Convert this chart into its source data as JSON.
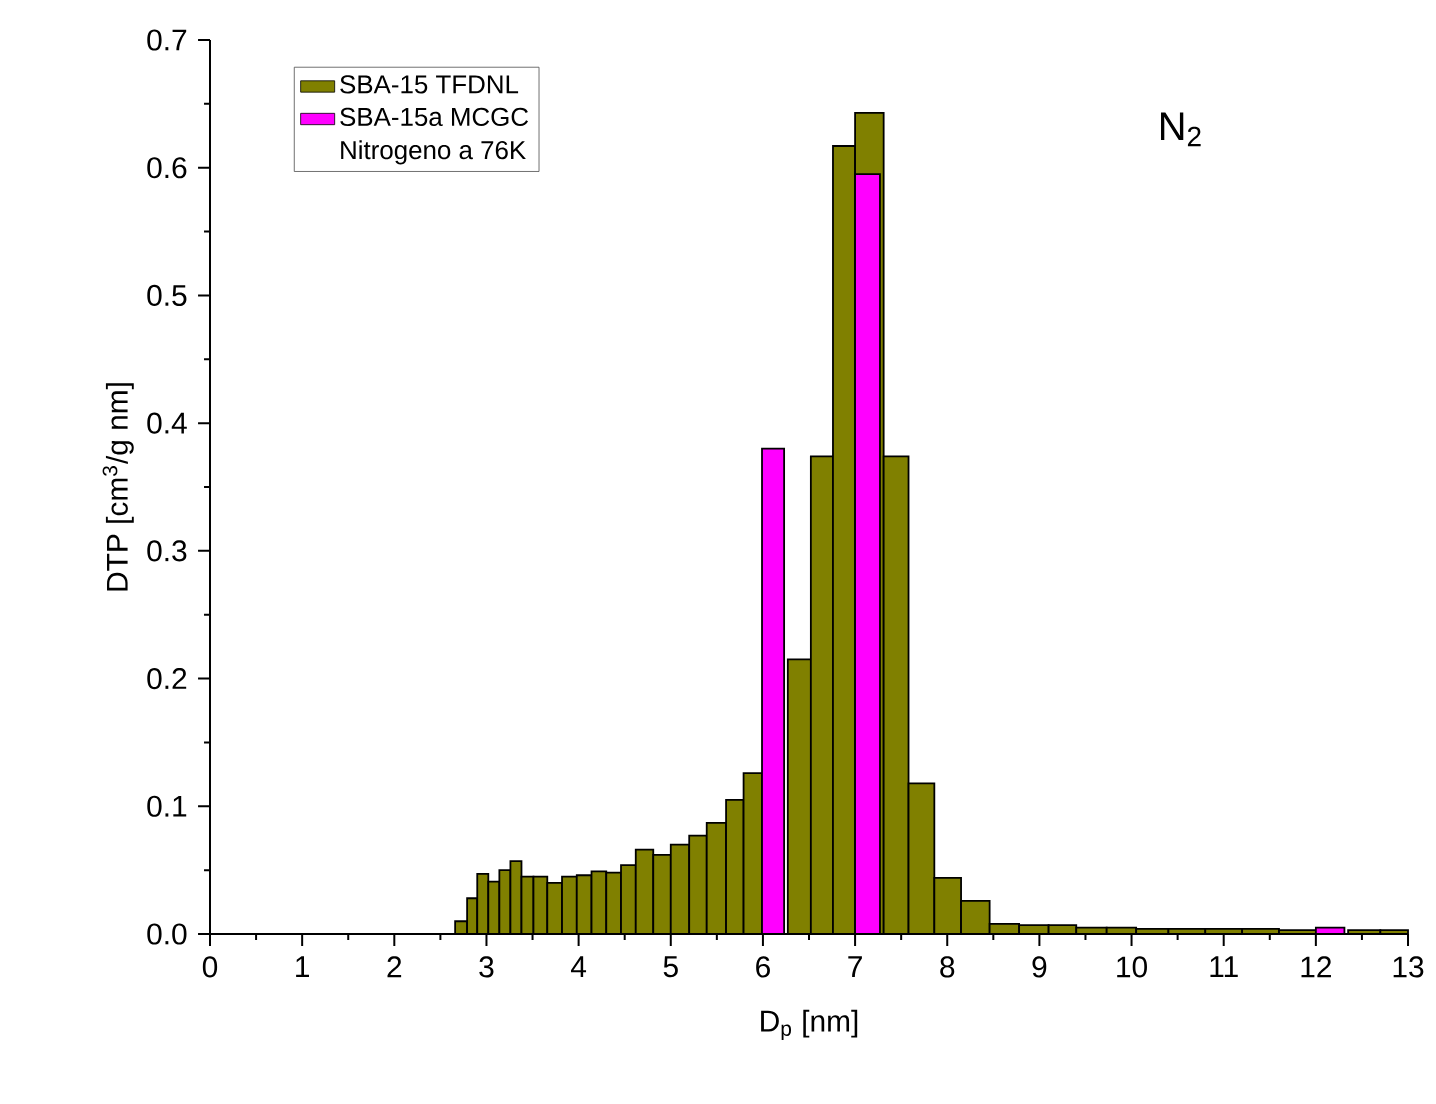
{
  "chart_data": {
    "type": "histogram",
    "xlabel": "D$_{p}$ [nm]",
    "ylabel": "DTP [cm$^{3}$/g nm]",
    "xlim": [
      0,
      13
    ],
    "xticks": [
      0,
      1,
      2,
      3,
      4,
      5,
      6,
      7,
      8,
      9,
      10,
      11,
      12,
      13
    ],
    "ylim": [
      0,
      0.7
    ],
    "yticks": [
      {
        "value": 0,
        "label": "0.0"
      },
      0.1,
      0.2,
      0.3,
      0.4,
      0.5,
      0.6,
      0.7
    ],
    "legend": "top left",
    "bins": [
      2.66,
      2.79,
      2.9,
      3.02,
      3.14,
      3.26,
      3.38,
      3.51,
      3.66,
      3.82,
      3.98,
      4.14,
      4.3,
      4.46,
      4.62,
      4.81,
      5.0,
      5.2,
      5.39,
      5.6,
      5.79,
      5.99,
      6.27,
      6.52,
      6.76,
      7.0,
      7.31,
      7.58,
      7.86,
      8.15,
      8.46,
      8.78,
      9.1,
      9.4,
      9.73,
      10.05,
      10.4,
      10.8,
      11.2,
      11.6,
      12.0,
      12.35,
      12.7,
      13.0
    ],
    "series": [
      {
        "name": "SBA-15 TFDNL",
        "color": "#808000",
        "values": [
          0.01,
          0.028,
          0.047,
          0.041,
          0.05,
          0.057,
          0.045,
          0.045,
          0.04,
          0.045,
          0.046,
          0.049,
          0.048,
          0.054,
          0.066,
          0.062,
          0.07,
          0.077,
          0.087,
          0.105,
          0.126,
          null,
          0.215,
          0.374,
          0.617,
          0.643,
          0.374,
          0.118,
          0.044,
          0.026,
          0.008,
          0.007,
          0.007,
          0.005,
          0.005,
          0.004,
          0.004,
          0.004,
          0.004,
          0.003,
          null,
          0.003,
          0.003
        ]
      },
      {
        "name": "SBA-15a MCGC",
        "color": "#ff00ff",
        "values": [
          null,
          null,
          null,
          null,
          null,
          null,
          null,
          null,
          null,
          null,
          null,
          null,
          null,
          null,
          null,
          null,
          null,
          null,
          null,
          null,
          null,
          0.38,
          null,
          null,
          null,
          0.595,
          null,
          null,
          null,
          null,
          null,
          null,
          null,
          null,
          null,
          null,
          null,
          null,
          null,
          null,
          0.005,
          null,
          null
        ]
      }
    ],
    "annotations": [
      "Nitrogeno a 76K",
      "N$_{2}$"
    ]
  }
}
